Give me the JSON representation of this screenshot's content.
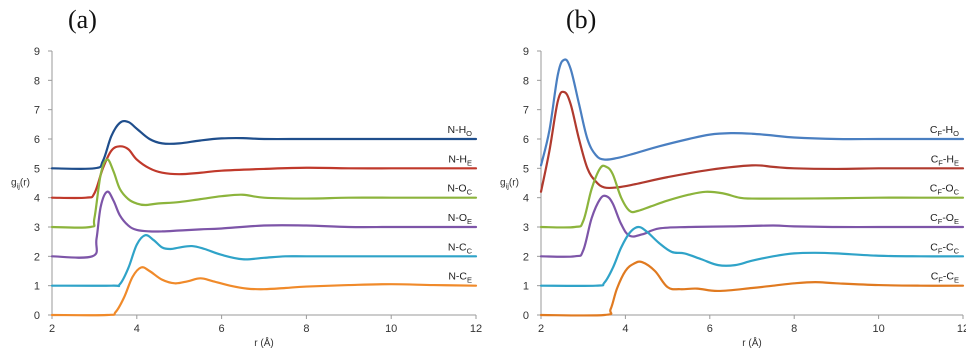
{
  "chart_data": [
    {
      "type": "line",
      "panel_label": "(a)",
      "xlabel": "r (Å)",
      "ylabel": "g",
      "ylabel_sub": "ij",
      "ylabel_suffix": "(r)",
      "xlim": [
        2,
        12
      ],
      "ylim": [
        0,
        9
      ],
      "xticks": [
        2,
        4,
        6,
        8,
        10,
        12
      ],
      "yticks": [
        0,
        1,
        2,
        3,
        4,
        5,
        6,
        7,
        8,
        9
      ],
      "grid": false,
      "legend": "inline labels at right end of each curve",
      "series": [
        {
          "name": "N-H",
          "name_main": "N-H",
          "name_sub": "O",
          "color": "#1f4e8c",
          "offset": 5,
          "x": [
            2.0,
            3.0,
            3.2,
            3.4,
            3.6,
            3.8,
            4.0,
            4.3,
            4.6,
            5.0,
            5.5,
            6.0,
            6.5,
            7.0,
            8.0,
            9.0,
            10.0,
            11.0,
            12.0
          ],
          "y": [
            5.0,
            5.0,
            5.25,
            6.1,
            6.55,
            6.58,
            6.35,
            6.0,
            5.85,
            5.85,
            5.95,
            6.02,
            6.03,
            6.0,
            6.0,
            6.0,
            6.0,
            6.0,
            6.0
          ]
        },
        {
          "name": "N-H",
          "name_main": "N-H",
          "name_sub": "E",
          "color": "#c0392b",
          "offset": 4,
          "x": [
            2.0,
            2.8,
            3.0,
            3.2,
            3.4,
            3.6,
            3.8,
            4.0,
            4.3,
            4.6,
            5.0,
            5.5,
            6.0,
            7.0,
            8.0,
            9.0,
            10.0,
            11.0,
            12.0
          ],
          "y": [
            4.0,
            4.0,
            4.15,
            5.0,
            5.6,
            5.75,
            5.65,
            5.3,
            5.0,
            4.85,
            4.8,
            4.85,
            4.92,
            4.98,
            5.02,
            5.0,
            5.0,
            5.0,
            5.0
          ]
        },
        {
          "name": "N-O",
          "name_main": "N-O",
          "name_sub": "C",
          "color": "#8cb43c",
          "offset": 3,
          "x": [
            2.0,
            2.9,
            3.0,
            3.15,
            3.3,
            3.45,
            3.6,
            3.8,
            4.0,
            4.2,
            4.5,
            5.0,
            5.5,
            6.0,
            6.5,
            7.0,
            8.0,
            9.0,
            10.0,
            11.0,
            12.0
          ],
          "y": [
            3.0,
            3.0,
            3.3,
            4.8,
            5.3,
            4.9,
            4.3,
            3.95,
            3.8,
            3.75,
            3.8,
            3.85,
            3.95,
            4.05,
            4.1,
            4.0,
            3.97,
            4.0,
            4.0,
            4.0,
            4.0
          ]
        },
        {
          "name": "N-O",
          "name_main": "N-O",
          "name_sub": "E",
          "color": "#7d55a8",
          "offset": 2,
          "x": [
            2.0,
            2.95,
            3.05,
            3.15,
            3.3,
            3.45,
            3.6,
            3.8,
            4.0,
            4.3,
            4.6,
            5.0,
            5.5,
            6.0,
            7.0,
            8.0,
            9.0,
            10.0,
            11.0,
            12.0
          ],
          "y": [
            2.0,
            2.0,
            2.6,
            3.7,
            4.2,
            3.9,
            3.4,
            3.05,
            2.9,
            2.85,
            2.85,
            2.88,
            2.92,
            2.95,
            3.05,
            3.05,
            3.0,
            3.0,
            3.0,
            3.0
          ]
        },
        {
          "name": "N-C",
          "name_main": "N-C",
          "name_sub": "C",
          "color": "#2fa3c8",
          "offset": 1,
          "x": [
            2.0,
            3.4,
            3.6,
            3.8,
            4.0,
            4.2,
            4.4,
            4.6,
            4.8,
            5.0,
            5.3,
            5.6,
            6.0,
            6.5,
            7.0,
            7.5,
            8.0,
            9.0,
            10.0,
            11.0,
            12.0
          ],
          "y": [
            1.0,
            1.0,
            1.05,
            1.6,
            2.4,
            2.72,
            2.55,
            2.3,
            2.25,
            2.3,
            2.35,
            2.25,
            2.05,
            1.9,
            1.95,
            2.0,
            2.0,
            2.0,
            2.0,
            2.0,
            2.0
          ]
        },
        {
          "name": "N-C",
          "name_main": "N-C",
          "name_sub": "E",
          "color": "#f08a2a",
          "offset": 0,
          "x": [
            2.0,
            3.3,
            3.5,
            3.7,
            3.9,
            4.1,
            4.3,
            4.6,
            4.9,
            5.2,
            5.5,
            5.8,
            6.2,
            6.6,
            7.0,
            7.5,
            8.0,
            9.0,
            10.0,
            11.0,
            12.0
          ],
          "y": [
            0.0,
            0.0,
            0.1,
            0.6,
            1.3,
            1.62,
            1.5,
            1.2,
            1.08,
            1.15,
            1.25,
            1.15,
            1.0,
            0.9,
            0.88,
            0.92,
            0.97,
            1.02,
            1.05,
            1.02,
            1.0
          ]
        }
      ]
    },
    {
      "type": "line",
      "panel_label": "(b)",
      "xlabel": "r (Å)",
      "ylabel": "g",
      "ylabel_sub": "ij",
      "ylabel_suffix": "(r)",
      "xlim": [
        2,
        12
      ],
      "ylim": [
        0,
        9
      ],
      "xticks": [
        2,
        4,
        6,
        8,
        10,
        12
      ],
      "yticks": [
        0,
        1,
        2,
        3,
        4,
        5,
        6,
        7,
        8,
        9
      ],
      "grid": false,
      "legend": "inline labels at right end of each curve",
      "series": [
        {
          "name": "CF-HO",
          "name_main": "C",
          "name_sub": "F",
          "name_mid": "-H",
          "name_sub2": "O",
          "color": "#4a7fc1",
          "offset": 5,
          "x": [
            2.0,
            2.2,
            2.4,
            2.55,
            2.7,
            2.9,
            3.1,
            3.3,
            3.5,
            3.8,
            4.2,
            4.8,
            5.5,
            6.0,
            6.5,
            7.0,
            7.5,
            8.0,
            9.0,
            10.0,
            11.0,
            12.0
          ],
          "y": [
            5.1,
            6.3,
            8.2,
            8.7,
            8.4,
            7.2,
            6.0,
            5.45,
            5.3,
            5.35,
            5.5,
            5.75,
            6.0,
            6.15,
            6.2,
            6.18,
            6.12,
            6.05,
            6.0,
            6.0,
            6.0,
            6.0
          ]
        },
        {
          "name": "CF-HE",
          "name_main": "C",
          "name_sub": "F",
          "name_mid": "-H",
          "name_sub2": "E",
          "color": "#b03a2e",
          "offset": 4,
          "x": [
            2.0,
            2.2,
            2.4,
            2.55,
            2.7,
            2.9,
            3.1,
            3.3,
            3.5,
            3.8,
            4.2,
            5.0,
            6.0,
            7.0,
            7.5,
            8.0,
            9.0,
            10.0,
            11.0,
            12.0
          ],
          "y": [
            4.2,
            5.6,
            7.3,
            7.6,
            7.2,
            6.0,
            5.0,
            4.55,
            4.35,
            4.35,
            4.45,
            4.7,
            4.95,
            5.1,
            5.05,
            5.0,
            4.98,
            5.0,
            5.0,
            5.0
          ]
        },
        {
          "name": "CF-OC",
          "name_main": "C",
          "name_sub": "F",
          "name_mid": "-O",
          "name_sub2": "C",
          "color": "#8cb43c",
          "offset": 3,
          "x": [
            2.0,
            2.8,
            3.0,
            3.2,
            3.4,
            3.55,
            3.7,
            3.9,
            4.1,
            4.3,
            4.6,
            5.0,
            5.5,
            5.9,
            6.3,
            6.7,
            7.0,
            8.0,
            9.0,
            10.0,
            11.0,
            12.0
          ],
          "y": [
            3.0,
            3.0,
            3.2,
            4.3,
            5.0,
            5.05,
            4.8,
            4.0,
            3.55,
            3.55,
            3.7,
            3.9,
            4.1,
            4.2,
            4.15,
            4.0,
            3.97,
            3.97,
            3.98,
            4.0,
            4.0,
            4.0
          ]
        },
        {
          "name": "CF-OE",
          "name_main": "C",
          "name_sub": "F",
          "name_mid": "-O",
          "name_sub2": "E",
          "color": "#7d55a8",
          "offset": 2,
          "x": [
            2.0,
            2.8,
            3.0,
            3.2,
            3.4,
            3.55,
            3.7,
            3.9,
            4.1,
            4.4,
            4.8,
            5.5,
            6.5,
            7.5,
            8.0,
            9.0,
            10.0,
            11.0,
            12.0
          ],
          "y": [
            2.0,
            2.0,
            2.2,
            3.3,
            3.95,
            4.05,
            3.8,
            3.1,
            2.7,
            2.75,
            2.95,
            3.0,
            3.02,
            3.05,
            3.02,
            3.0,
            3.0,
            3.0,
            3.0
          ]
        },
        {
          "name": "CF-CC",
          "name_main": "C",
          "name_sub": "F",
          "name_mid": "-C",
          "name_sub2": "C",
          "color": "#2fa3c8",
          "offset": 1,
          "x": [
            2.0,
            3.3,
            3.5,
            3.7,
            3.9,
            4.1,
            4.3,
            4.5,
            4.8,
            5.1,
            5.4,
            5.8,
            6.2,
            6.6,
            7.0,
            7.5,
            8.0,
            8.5,
            9.0,
            10.0,
            11.0,
            12.0
          ],
          "y": [
            1.0,
            1.0,
            1.1,
            1.6,
            2.3,
            2.8,
            3.0,
            2.85,
            2.45,
            2.15,
            2.1,
            1.9,
            1.7,
            1.7,
            1.85,
            2.0,
            2.1,
            2.12,
            2.1,
            2.02,
            2.0,
            2.0
          ]
        },
        {
          "name": "CF-CE",
          "name_main": "C",
          "name_sub": "F",
          "name_mid": "-C",
          "name_sub2": "E",
          "color": "#e07a20",
          "offset": 0,
          "x": [
            2.0,
            3.5,
            3.65,
            3.8,
            4.0,
            4.2,
            4.4,
            4.7,
            5.0,
            5.3,
            5.7,
            6.2,
            7.0,
            7.5,
            8.0,
            8.5,
            9.0,
            10.0,
            11.0,
            12.0
          ],
          "y": [
            0.0,
            0.0,
            0.2,
            0.9,
            1.5,
            1.75,
            1.8,
            1.5,
            0.95,
            0.88,
            0.9,
            0.82,
            0.92,
            1.0,
            1.08,
            1.12,
            1.08,
            1.02,
            1.0,
            1.0
          ]
        }
      ]
    }
  ]
}
